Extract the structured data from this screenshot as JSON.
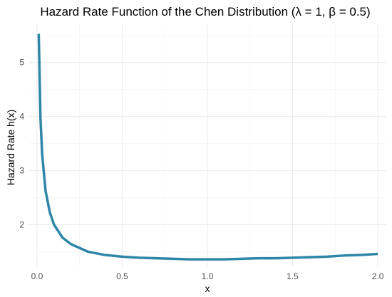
{
  "chart_data": {
    "type": "line",
    "title": "Hazard Rate Function of the Chen Distribution (λ = 1, β = 0.5)",
    "xlabel": "x",
    "ylabel": "Hazard Rate h(x)",
    "xlim": [
      -0.05,
      2.05
    ],
    "ylim": [
      1.23,
      5.72
    ],
    "x_ticks": [
      0.0,
      0.5,
      1.0,
      1.5,
      2.0
    ],
    "x_tick_labels": [
      "0.0",
      "0.5",
      "1.0",
      "1.5",
      "2.0"
    ],
    "y_ticks": [
      2,
      3,
      4,
      5
    ],
    "y_tick_labels": [
      "2",
      "3",
      "4",
      "5"
    ],
    "grid": true,
    "series": [
      {
        "color": "#2e86a8",
        "x": [
          0.01,
          0.02,
          0.03,
          0.05,
          0.075,
          0.1,
          0.15,
          0.2,
          0.3,
          0.4,
          0.5,
          0.6,
          0.7,
          0.8,
          0.9,
          1.0,
          1.1,
          1.2,
          1.3,
          1.4,
          1.5,
          1.6,
          1.7,
          1.8,
          1.9,
          2.0
        ],
        "y": [
          5.53,
          3.99,
          3.31,
          2.63,
          2.23,
          2.0,
          1.76,
          1.64,
          1.5,
          1.44,
          1.41,
          1.39,
          1.38,
          1.37,
          1.36,
          1.36,
          1.36,
          1.37,
          1.38,
          1.38,
          1.39,
          1.4,
          1.41,
          1.43,
          1.44,
          1.46
        ]
      }
    ]
  }
}
